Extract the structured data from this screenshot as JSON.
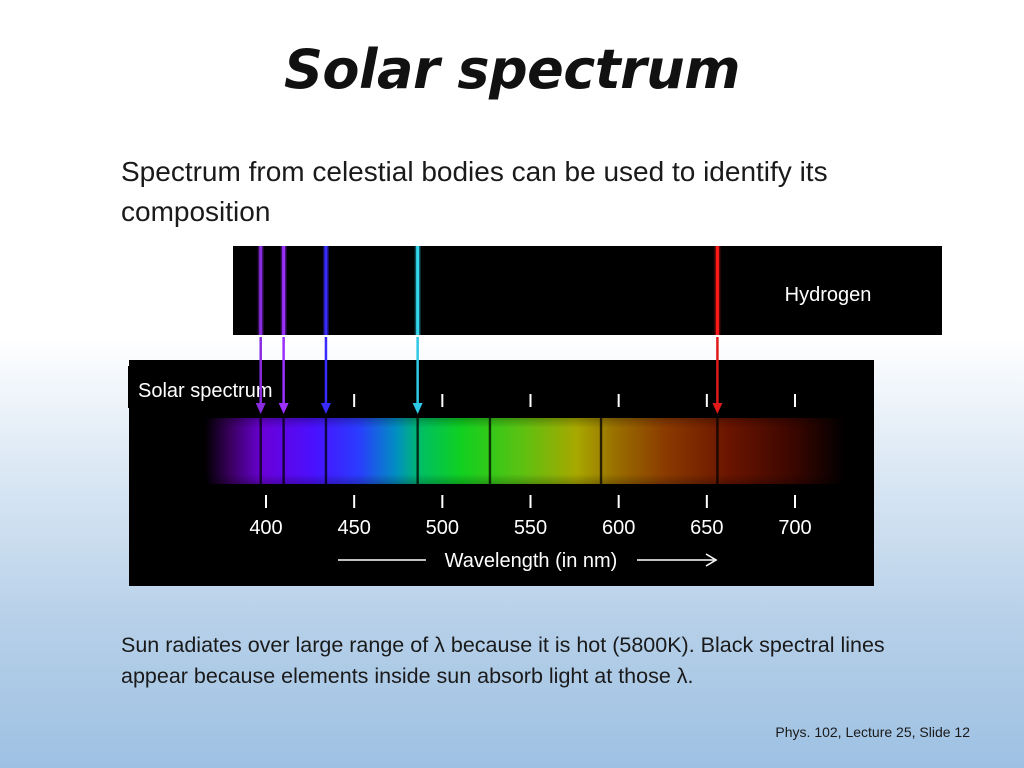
{
  "slide": {
    "title": "Solar spectrum",
    "intro": "Spectrum from celestial bodies can be used to identify its composition",
    "caption": "Sun radiates over large range of λ because it is hot (5800K). Black spectral lines appear because elements inside sun absorb light at those λ.",
    "footer": "Phys. 102, Lecture 25, Slide 12"
  },
  "hydrogen_panel": {
    "label": "Hydrogen",
    "emission_lines": [
      {
        "wavelength": 397,
        "color": "#8a2be2"
      },
      {
        "wavelength": 410,
        "color": "#9b30ff"
      },
      {
        "wavelength": 434,
        "color": "#3a2bff"
      },
      {
        "wavelength": 486,
        "color": "#33d6ee"
      },
      {
        "wavelength": 656,
        "color": "#ff1a1a"
      }
    ]
  },
  "solar_panel": {
    "label": "Solar spectrum",
    "axis_title": "Wavelength (in nm)",
    "ticks": [
      "400",
      "450",
      "500",
      "550",
      "600",
      "650",
      "700"
    ],
    "absorption_lines": [
      397,
      410,
      434,
      486,
      527,
      590,
      656
    ]
  },
  "colors": {
    "arrow_violet": "#8a2be2",
    "arrow_purple": "#9b30ff",
    "arrow_blue": "#3a2bff",
    "arrow_cyan": "#2ec9e6",
    "arrow_red": "#e01a1a"
  }
}
